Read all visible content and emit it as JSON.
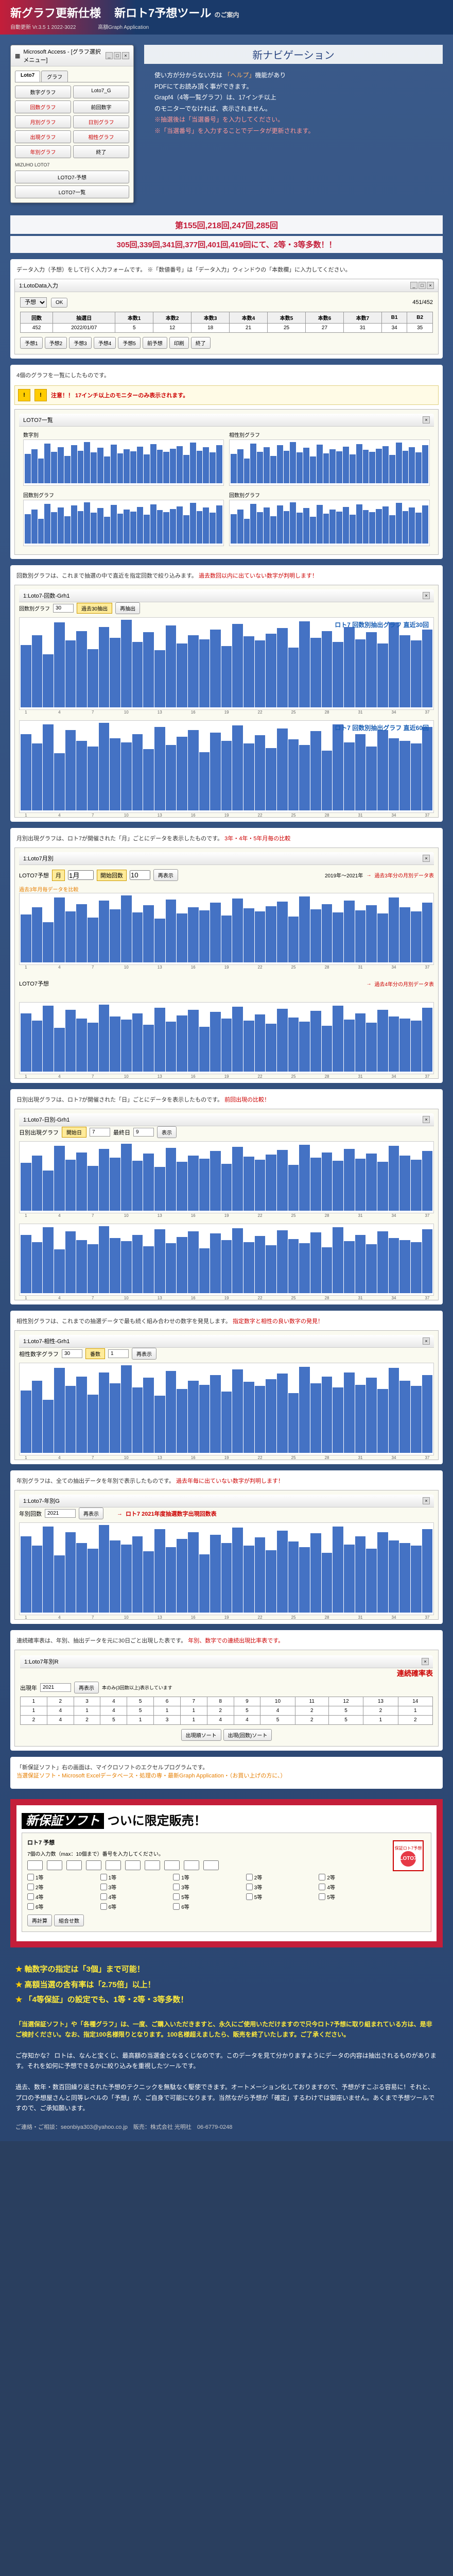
{
  "header": {
    "title_red": "新グラフ更新仕様",
    "title_right": "新ロト7予想ツール",
    "title_suffix": "のご案内",
    "sub_left": "自動更新 Vr.3.5 1 2022-3022",
    "sub_right": "高額Graph Application"
  },
  "mainMenu": {
    "windowTitle": "Microsoft Access - [グラフ選択メニュー]",
    "tabs": [
      "Loto7",
      "グラフ"
    ],
    "buttons": [
      {
        "label": "数字グラフ",
        "red": false
      },
      {
        "label": "Loto7_G",
        "red": false
      },
      {
        "label": "回数グラフ",
        "red": true
      },
      {
        "label": "前回数字",
        "red": false
      },
      {
        "label": "月別グラフ",
        "red": true
      },
      {
        "label": "日別グラフ",
        "red": true
      },
      {
        "label": "出現グラフ",
        "red": true
      },
      {
        "label": "相性グラフ",
        "red": true
      },
      {
        "label": "年別グラフ",
        "red": true
      },
      {
        "label": "終了",
        "red": false
      }
    ],
    "info1": "MIZUHO LOTO7",
    "info2": "LOTO7-予想",
    "info3": "LOTO7一覧"
  },
  "nav": {
    "title": "新ナビゲーション",
    "lines": [
      "使い方が分からない方は 「ヘルプ」機能があり",
      "PDFにてお読み頂く事ができます。",
      "Grapf4（4等一覧グラフ）は、17インチ以上",
      "のモニターでなければ、表示されません。",
      "",
      "※抽選後は「当選番号」を入力してください。",
      "※「当選番号」を入力することでデータが更新されます。"
    ],
    "rounds1": "第155回,218回,247回,285回",
    "rounds2": "305回,339回,341回,377回,401回,419回にて、2等・3等多数！！"
  },
  "panel1": {
    "desc": "データ入力（予想）をして行く入力フォームです。 ※「数値番号」は「データ入力」ウィンドウの「本数欄」に入力してください。",
    "windowTitle": "1:LotoData入力",
    "dropdown": "予想",
    "ok": "OK",
    "round": "451/452",
    "tableHeaders": [
      "回数",
      "抽選日",
      "本数1",
      "本数2",
      "本数3",
      "本数4",
      "本数5",
      "本数6",
      "本数7",
      "B1",
      "B2"
    ],
    "tableRow": [
      "452",
      "2022/01/07",
      "5",
      "12",
      "18",
      "21",
      "25",
      "27",
      "31",
      "34",
      "35"
    ],
    "buttons": [
      "予想1",
      "予想2",
      "予想3",
      "予想4",
      "予想5",
      "前予想",
      "印刷",
      "終了"
    ]
  },
  "panel2": {
    "desc": "4個のグラフを一覧にしたものです。",
    "warning": "注意！！ 17インチ以上のモニターのみ表示されます。",
    "windowTitle": "LOTO7一覧",
    "charts": [
      {
        "title": "数字別",
        "color": "#4472c4"
      },
      {
        "title": "相性別グラフ",
        "color": "#4472c4"
      },
      {
        "title": "回数別グラフ",
        "color": "#4472c4"
      },
      {
        "title": "回数別グラフ",
        "color": "#4472c4"
      }
    ]
  },
  "panel3": {
    "desc1": "回数別グラフは、これまで抽選の中で直近を指定回数で絞り込みます。",
    "desc2": "過去数回以内に出ていない数字が判明します！",
    "windowTitle": "1:Loto7-回数-Grh1",
    "chart1Title": "ロト7 回数別抽出グラフ 直近30回",
    "chart2Title": "ロト7 回数別抽出グラフ 直近60回",
    "controls": {
      "label1": "回数別グラフ",
      "val1": "30",
      "btn": "過去30抽出",
      "label2": "再抽出"
    }
  },
  "panel4": {
    "desc": "月別出現グラフは、ロト7が開催された「月」ごとにデータを表示したものです。",
    "desc2": "3年・4年・5年月毎の比較",
    "windowTitle": "1:Loto7月別",
    "controls": {
      "label": "LOTO7予想",
      "month": "月",
      "val": "1月",
      "label2": "開始回数",
      "val2": "10",
      "btn": "再表示"
    },
    "note1": "過去3年分の月別データ表",
    "note2": "過去4年分の月別データ表",
    "chartLabel": "2019年～2021年",
    "subnote": "過去3年月毎データを比較"
  },
  "panel5": {
    "desc": "日別出現グラフは、ロト7が開催された「日」ごとにデータを表示したものです。",
    "desc2": "前回出現の比較！",
    "windowTitle": "1:Loto7-日別-Grh1",
    "controls": {
      "label": "日別出現グラフ",
      "label2": "開始日",
      "val": "7",
      "label3": "最終日",
      "val2": "9",
      "btn": "表示"
    }
  },
  "panel6": {
    "desc": "相性別グラフは、これまでの抽選データで最も続く組み合わせの数字を発見します。",
    "desc2": "指定数字と相性の良い数字の発見！",
    "windowTitle": "1:Loto7-相性-Grh1",
    "controls": {
      "label": "相性数字グラフ",
      "val": "30",
      "btn": "番数",
      "val2": "1",
      "label2": "再表示"
    }
  },
  "panel7": {
    "desc": "年別グラフは、全ての抽出データを年別で表示したものです。",
    "desc2": "過去年毎に出ていない数字が判明します！",
    "windowTitle": "1:Loto7-年別G",
    "controls": {
      "label": "年別回数",
      "val": "2021",
      "btn": "再表示"
    },
    "chartTitle": "ロト7 2021年度抽選数字出現回数表"
  },
  "panel8": {
    "desc": "連続確率表は、年別、抽出データを元に30日ごと出現した表です。",
    "desc2": "年別、数字での連続出現比率表です。",
    "windowTitle": "1:Loto7年別R",
    "title": "連続確率表",
    "controls": {
      "label": "出現年",
      "val": "2021",
      "btn1": "再表示",
      "btn2": "本のみ(3回数以上)表示しています",
      "btn3": "出現順ソート",
      "btn4": "出現(回数)ソート"
    }
  },
  "footer": {
    "desc": "「新保証ソフト」右の画面は、マイクロソフトのエクセルプログラムです。",
    "desc2": "当選保証ソフト・Microsoft Excelデータベース・処理の専・最新Graph Application・（お買い上げの方に、）",
    "bannerTitle": "新保証ソフト",
    "bannerSuffix": "ついに限定販売！",
    "guaranteeTitle": "ロト7 予想",
    "iconLabel": "保証ロト7予想",
    "iconText": "LOTO7",
    "inputLabel": "7個の入力数（max：10個まで）番号を入力してください。",
    "checkLabels": [
      "1等",
      "2等",
      "3等",
      "4等",
      "5等",
      "6等"
    ],
    "btnCalc": "再計算",
    "btnCombo": "組合せ数",
    "features": [
      "軸数字の指定は「3個」まで可能！",
      "高額当選の含有率は「2.75倍」以上！",
      "「4等保証」の設定でも、1等・2等・3等多数！"
    ],
    "text1": "「当選保証ソフト」や「各種グラフ」は、一度、ご購入いただきますと、永久にご使用いただけますので只今ロト7予想に取り組まれている方は、是非ご検討ください。なお、指定100名様限りとなります。100名様超えましたら、販売を終了いたします。ご了承ください。",
    "text2": "ご存知かな？ ロトは、なんと宝くじ、最高額の当選金となるくじなのです。このデータを見て分かりますようにデータの内容は抽出されるものがあります。それを如何に予想できるかに絞り込みを重視したツールです。",
    "text3": "過去、数年・数百回繰り返された予想のテクニックを無駄なく駆使できます。オートメーション化しておりますので、予想がすこぶる容易に！それと、プロの予想屋さんと同等レベルの「予想」が、ご自身で可能になります。当然ながら予想が「確定」するわけでは御座いません。あくまで予想ツールですので、ご承知願います。",
    "contact": "ご連絡・ご相談：seonbiya303@yahoo.co.jp　販売：株式会社 光明社　06-6779-0248"
  },
  "sampleBars": {
    "set37": [
      45,
      52,
      38,
      61,
      48,
      55,
      42,
      58,
      50,
      63,
      47,
      54,
      41,
      59,
      46,
      52,
      49,
      56,
      44,
      60,
      51,
      48,
      53,
      57,
      43,
      62,
      50,
      55,
      47,
      58,
      49,
      54,
      46,
      61,
      52,
      48,
      56
    ],
    "set37b": [
      55,
      48,
      62,
      41,
      58,
      50,
      46,
      63,
      52,
      49,
      55,
      44,
      60,
      47,
      53,
      58,
      42,
      56,
      50,
      61,
      48,
      54,
      45,
      59,
      51,
      47,
      57,
      43,
      62,
      49,
      55,
      46,
      58,
      52,
      50,
      48,
      60
    ],
    "set12": [
      58,
      45,
      62,
      50,
      48,
      55,
      60,
      42,
      53,
      47,
      58,
      51
    ],
    "set14": [
      48,
      60,
      45,
      55,
      62,
      50,
      58,
      46,
      53,
      49,
      61,
      47,
      56,
      52
    ]
  }
}
